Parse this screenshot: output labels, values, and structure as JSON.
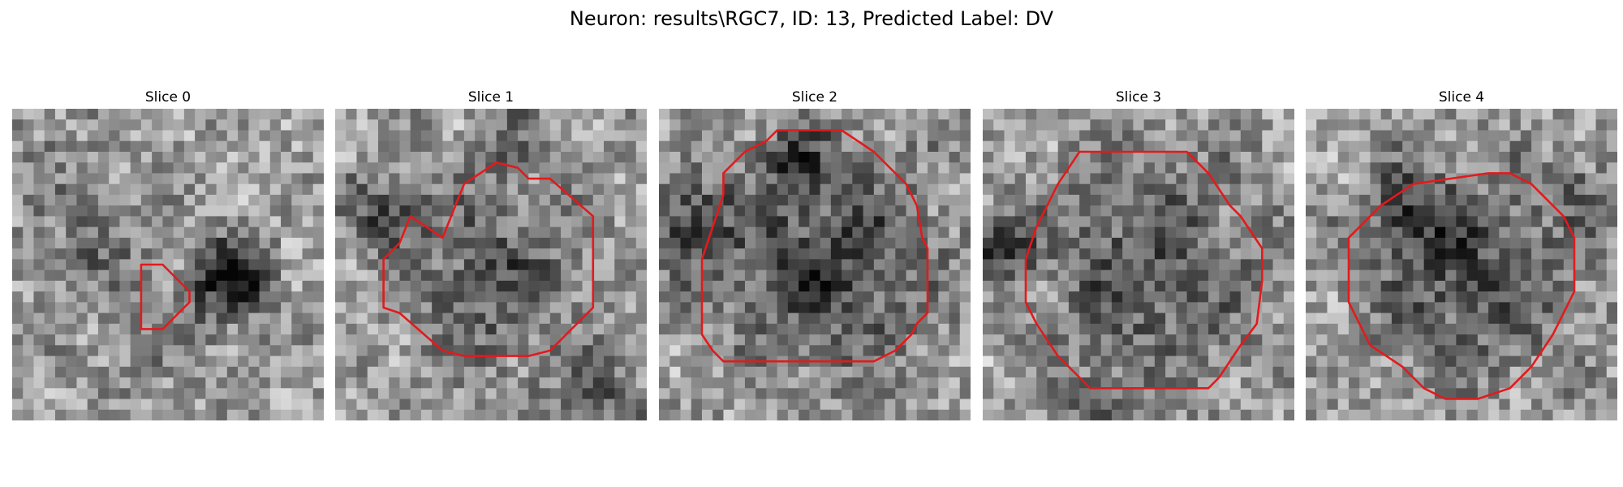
{
  "figure": {
    "title": "Neuron: results\\RGC7, ID: 13, Predicted Label: DV"
  },
  "panels": [
    {
      "title": "Slice 0"
    },
    {
      "title": "Slice 1"
    },
    {
      "title": "Slice 2"
    },
    {
      "title": "Slice 3"
    },
    {
      "title": "Slice 4"
    }
  ],
  "colors": {
    "contour": "#e31a1c",
    "background": "#ffffff",
    "text": "#000000"
  }
}
